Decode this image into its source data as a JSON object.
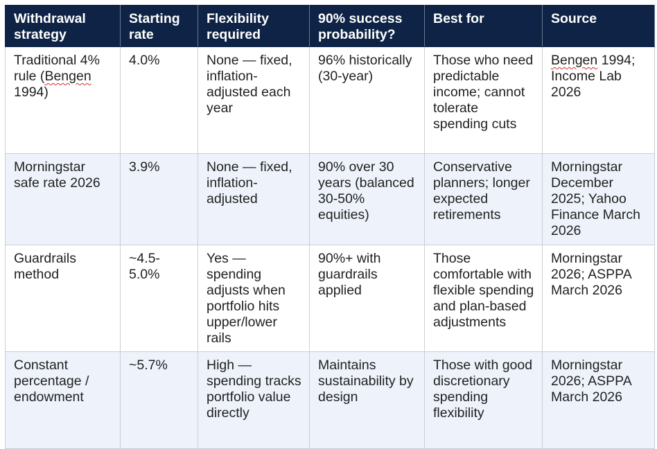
{
  "table": {
    "headers": [
      "Withdrawal strategy",
      "Starting rate",
      "Flexibility required",
      "90% success probability?",
      "Best for",
      "Source"
    ],
    "rows": [
      {
        "strategy_pre": "Traditional 4% rule (",
        "strategy_flag": "Bengen",
        "strategy_post": " 1994)",
        "rate": "4.0%",
        "flexibility": "None — fixed, inflation-adjusted each year",
        "success": "96% historically (30-year)",
        "best_for": "Those who need predictable income; cannot tolerate spending cuts",
        "source_flag": "Bengen",
        "source_post": " 1994; Income Lab 2026"
      },
      {
        "strategy": "Morningstar safe rate 2026",
        "rate": "3.9%",
        "flexibility": "None — fixed, inflation-adjusted",
        "success": "90% over 30 years (balanced 30-50% equities)",
        "best_for": "Conservative planners; longer expected retirements",
        "source": "Morningstar December 2025; Yahoo Finance March 2026"
      },
      {
        "strategy": "Guardrails method",
        "rate": "~4.5-5.0%",
        "flexibility": "Yes — spending adjusts when portfolio hits upper/lower rails",
        "success": "90%+ with guardrails applied",
        "best_for": "Those comfortable with flexible spending and plan-based adjustments",
        "source": "Morningstar 2026; ASPPA March 2026"
      },
      {
        "strategy": "Constant percentage / endowment",
        "rate": "~5.7%",
        "flexibility": "High — spending tracks portfolio value directly",
        "success": "Maintains sustainability by design",
        "best_for": "Those with good discretionary spending flexibility",
        "source": "Morningstar 2026; ASPPA March 2026"
      }
    ]
  }
}
